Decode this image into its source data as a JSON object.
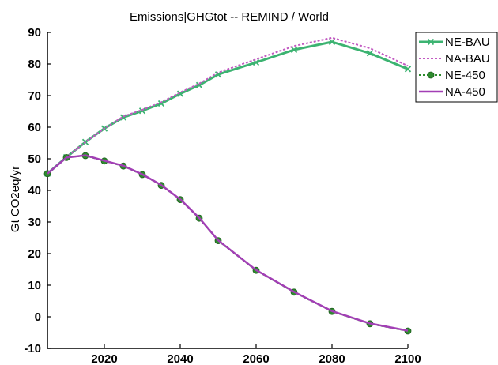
{
  "chart_data": {
    "type": "line",
    "title": "Emissions|GHGtot -- REMIND / World",
    "xlabel": "",
    "ylabel": "Gt CO2eq/yr",
    "xlim": [
      2005,
      2100
    ],
    "ylim": [
      -10,
      90
    ],
    "xticks": [
      2020,
      2040,
      2060,
      2080,
      2100
    ],
    "yticks": [
      -10,
      0,
      10,
      20,
      30,
      40,
      50,
      60,
      70,
      80,
      90
    ],
    "grid": false,
    "legend": "top-right",
    "x": [
      2005,
      2010,
      2015,
      2020,
      2025,
      2030,
      2035,
      2040,
      2045,
      2050,
      2060,
      2070,
      2080,
      2090,
      2100
    ],
    "series": [
      {
        "name": "NE-BAU",
        "color": "#3cb371",
        "style": "solid",
        "marker": "x",
        "values": [
          45.3,
          50.5,
          55.3,
          59.6,
          63.1,
          65.2,
          67.5,
          70.6,
          73.3,
          76.7,
          80.5,
          84.5,
          87.0,
          83.4,
          78.4
        ]
      },
      {
        "name": "NA-BAU",
        "color": "#c25ac2",
        "style": "dotted",
        "marker": "none",
        "values": [
          45.3,
          50.5,
          55.3,
          59.6,
          63.4,
          65.5,
          67.9,
          71.0,
          73.8,
          77.3,
          81.5,
          85.7,
          88.3,
          85.0,
          79.4
        ]
      },
      {
        "name": "NE-450",
        "color": "#2e8b2e",
        "style": "dotted",
        "marker": "o",
        "values": [
          45.3,
          50.4,
          51.0,
          49.3,
          47.7,
          45.0,
          41.6,
          37.1,
          31.2,
          24.1,
          14.7,
          7.8,
          1.7,
          -2.2,
          -4.5
        ]
      },
      {
        "name": "NA-450",
        "color": "#a23fb5",
        "style": "solid",
        "marker": "none",
        "values": [
          45.3,
          50.4,
          51.1,
          49.4,
          47.8,
          45.1,
          41.7,
          37.2,
          31.3,
          24.2,
          14.8,
          7.9,
          1.8,
          -2.1,
          -4.4
        ]
      }
    ]
  }
}
